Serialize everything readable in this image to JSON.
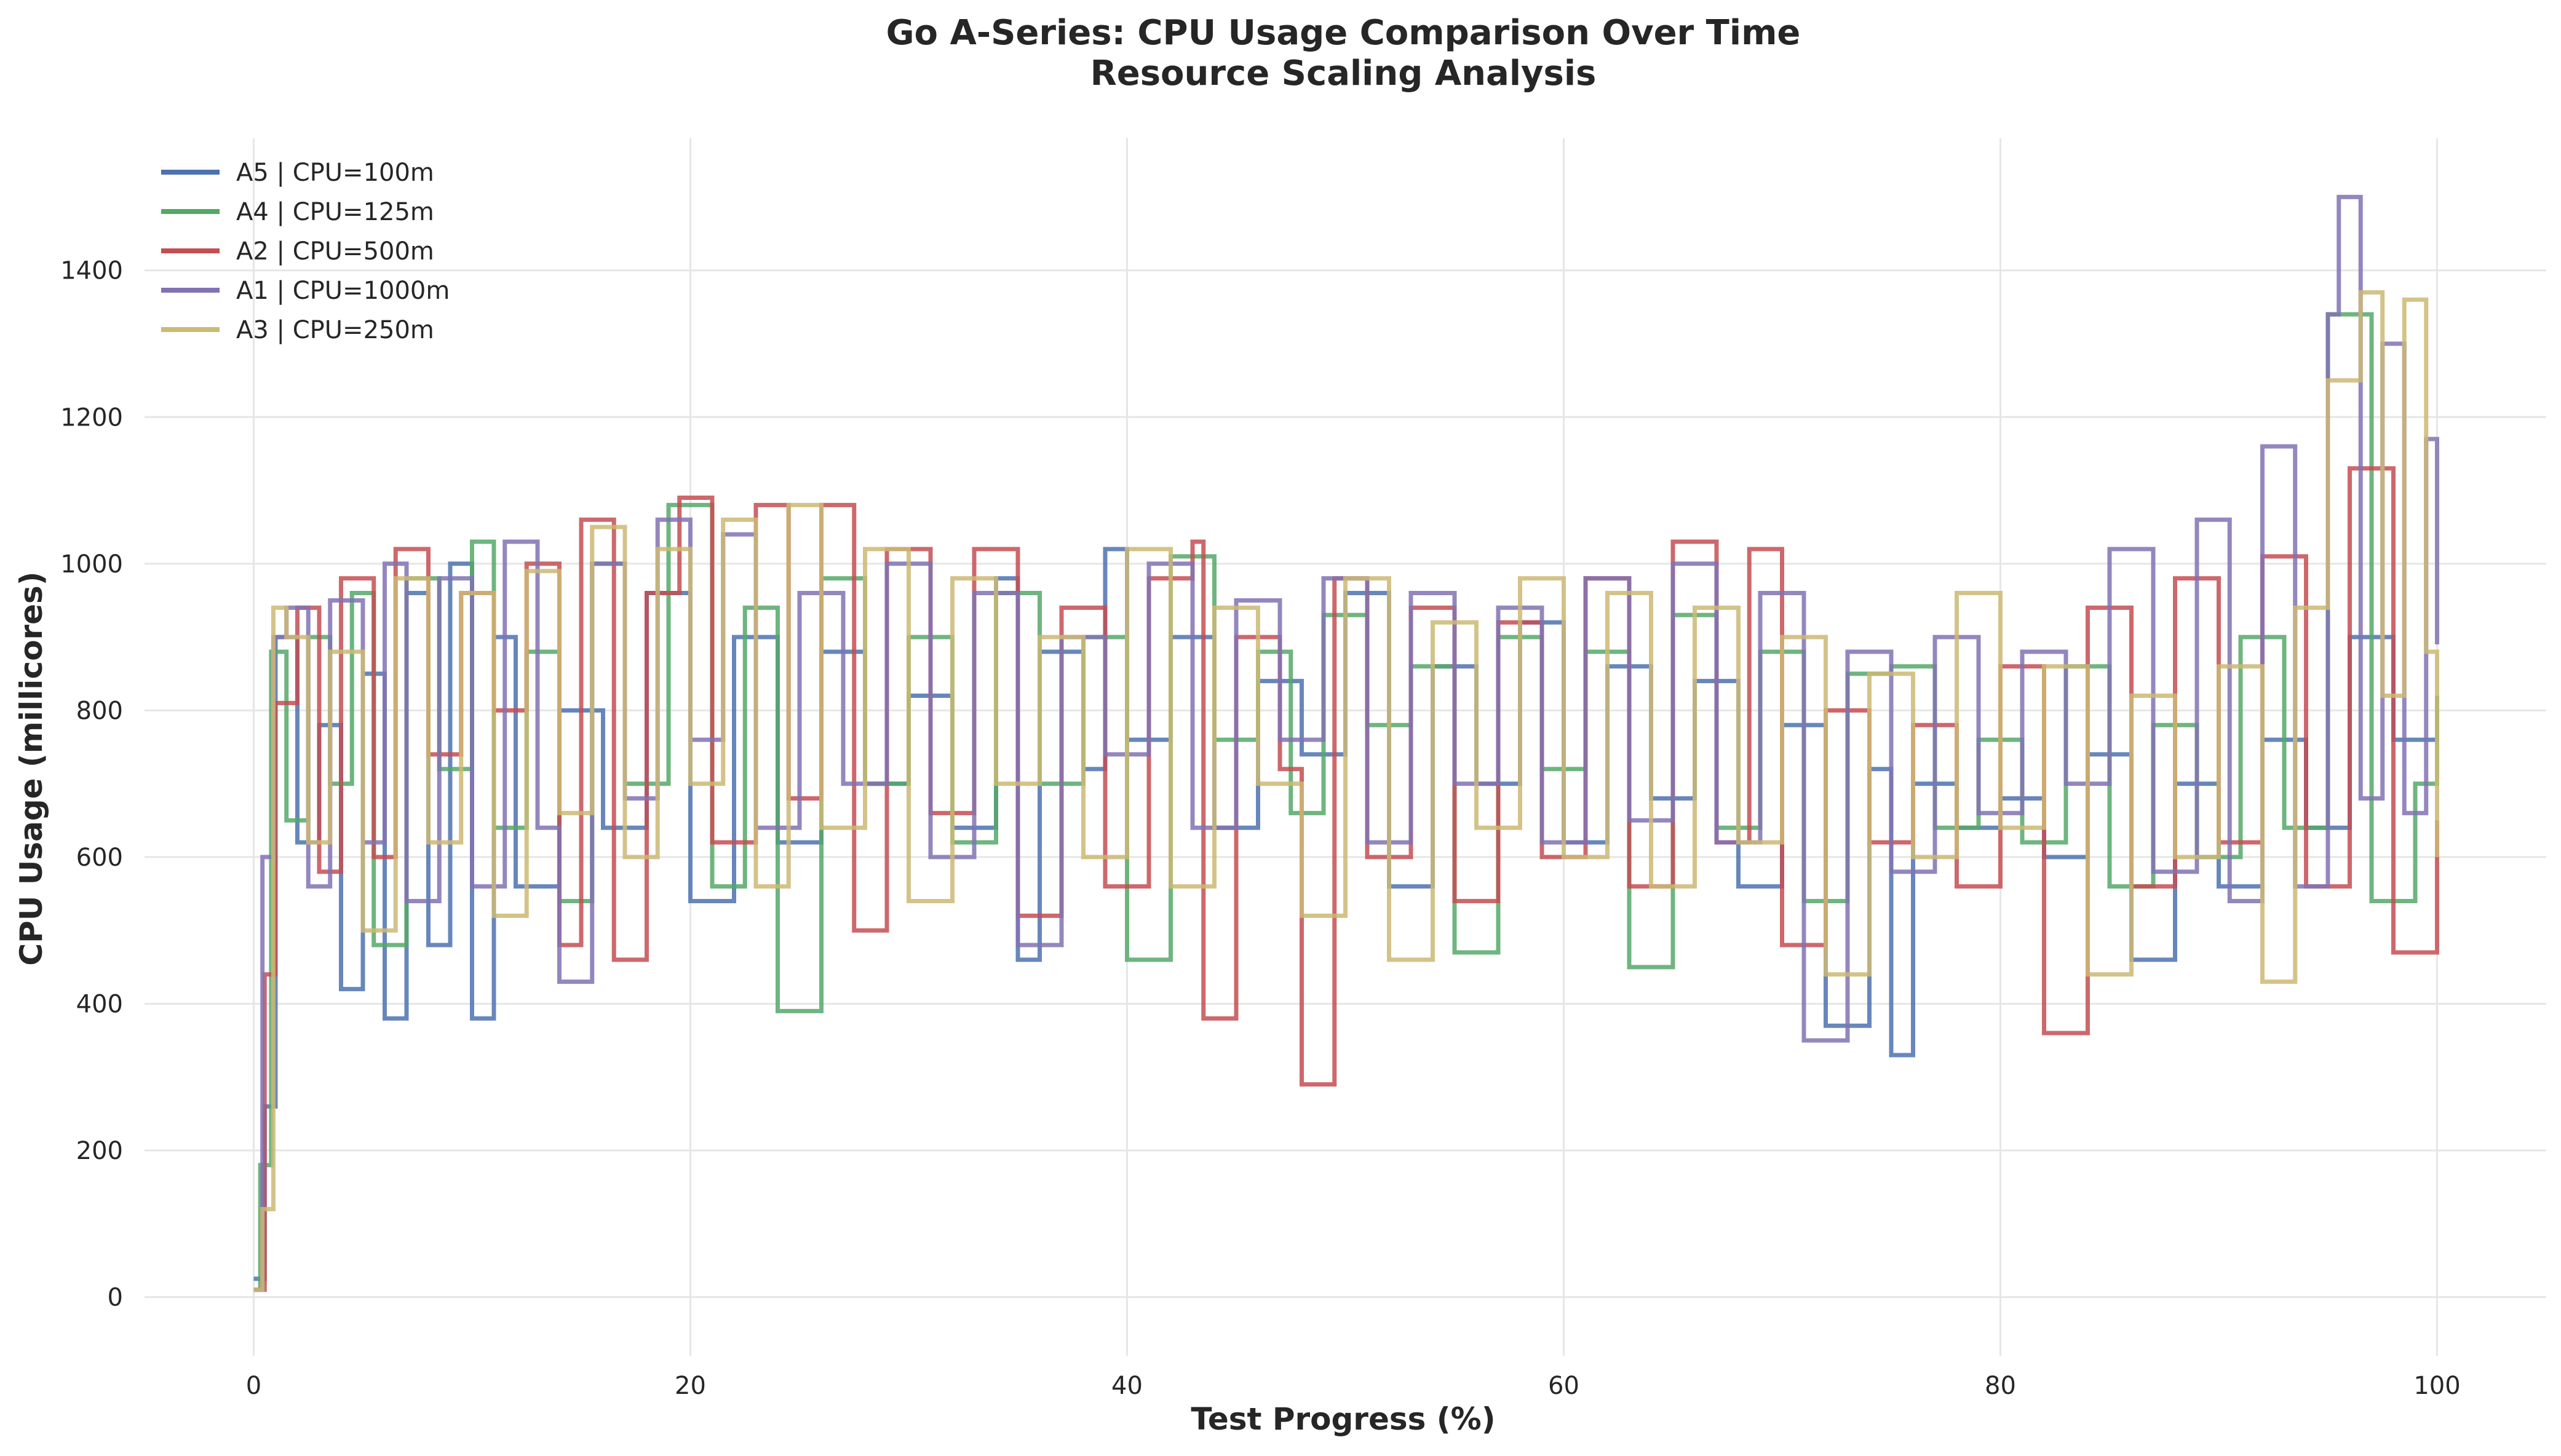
{
  "chart_data": {
    "type": "line",
    "step": true,
    "title": "Go A-Series: CPU Usage Comparison Over Time",
    "subtitle": "Resource Scaling Analysis",
    "xlabel": "Test Progress (%)",
    "ylabel": "CPU Usage (millicores)",
    "xlim": [
      -5,
      105
    ],
    "ylim": [
      -80,
      1580
    ],
    "xticks": [
      0,
      20,
      40,
      60,
      80,
      100
    ],
    "yticks": [
      0,
      200,
      400,
      600,
      800,
      1000,
      1200,
      1400
    ],
    "grid": true,
    "legend_position": "upper-left",
    "series": [
      {
        "name": "A5 | CPU=100m",
        "color": "#4c72b0",
        "x": [
          0,
          0.5,
          1,
          2,
          3,
          4,
          5,
          6,
          7,
          8,
          9,
          10,
          11,
          12,
          14,
          16,
          18,
          20,
          22,
          24,
          26,
          28,
          30,
          32,
          34,
          35,
          36,
          38,
          39,
          40,
          42,
          44,
          46,
          48,
          50,
          52,
          54,
          56,
          58,
          60,
          62,
          64,
          66,
          68,
          70,
          72,
          74,
          75,
          76,
          78,
          80,
          82,
          84,
          86,
          88,
          90,
          92,
          94,
          96,
          98,
          100
        ],
        "y": [
          25,
          260,
          900,
          620,
          780,
          420,
          850,
          380,
          960,
          480,
          1000,
          380,
          900,
          560,
          800,
          640,
          960,
          540,
          900,
          620,
          880,
          700,
          820,
          640,
          980,
          460,
          880,
          720,
          1020,
          760,
          900,
          640,
          840,
          740,
          960,
          560,
          860,
          700,
          920,
          620,
          860,
          680,
          840,
          560,
          780,
          370,
          720,
          330,
          700,
          640,
          680,
          600,
          740,
          460,
          700,
          560,
          760,
          640,
          900,
          760,
          820
        ]
      },
      {
        "name": "A4 | CPU=125m",
        "color": "#55a868",
        "x": [
          0,
          0.3,
          0.8,
          1.5,
          2.5,
          3.5,
          4.5,
          5.5,
          7,
          8.5,
          10,
          11,
          12.5,
          14,
          15.5,
          17,
          19,
          21,
          22.5,
          24,
          26,
          28,
          30,
          32,
          34,
          36,
          38,
          40,
          42,
          44,
          46,
          47.5,
          49,
          51,
          53,
          55,
          57,
          59,
          61,
          63,
          65,
          67,
          69,
          71,
          73,
          75,
          77,
          79,
          81,
          83,
          85,
          87,
          89,
          91,
          93,
          95,
          97,
          99,
          100
        ],
        "y": [
          10,
          180,
          880,
          650,
          900,
          700,
          960,
          480,
          980,
          720,
          1030,
          640,
          880,
          540,
          1000,
          700,
          1080,
          560,
          940,
          390,
          980,
          700,
          900,
          620,
          960,
          700,
          900,
          460,
          1010,
          760,
          880,
          660,
          930,
          780,
          860,
          470,
          900,
          720,
          880,
          450,
          930,
          640,
          880,
          540,
          850,
          860,
          640,
          760,
          620,
          860,
          560,
          780,
          600,
          900,
          640,
          1340,
          540,
          700,
          820
        ]
      },
      {
        "name": "A2 | CPU=500m",
        "color": "#c44e52",
        "x": [
          0,
          0.5,
          1,
          2,
          3,
          4,
          5.5,
          6.5,
          8,
          9.5,
          11,
          12.5,
          14,
          15,
          16.5,
          18,
          19.5,
          21,
          23,
          24.5,
          26,
          27.5,
          29,
          31,
          33,
          35,
          37,
          39,
          41,
          43,
          43.5,
          45,
          47,
          48,
          49.5,
          51,
          53,
          55,
          57,
          59,
          61,
          63,
          65,
          67,
          68.5,
          70,
          72,
          74,
          76,
          78,
          80,
          82,
          84,
          86,
          88,
          90,
          92,
          94,
          96,
          98,
          100
        ],
        "y": [
          10,
          440,
          810,
          940,
          580,
          980,
          600,
          1020,
          740,
          960,
          800,
          1000,
          480,
          1060,
          460,
          960,
          1090,
          620,
          1080,
          680,
          1080,
          500,
          1020,
          660,
          1020,
          520,
          940,
          560,
          980,
          1030,
          380,
          900,
          720,
          290,
          980,
          600,
          940,
          540,
          920,
          600,
          980,
          560,
          1030,
          620,
          1020,
          480,
          800,
          620,
          780,
          560,
          860,
          360,
          940,
          560,
          980,
          620,
          1010,
          560,
          1130,
          470,
          650
        ]
      },
      {
        "name": "A1 | CPU=1000m",
        "color": "#8172b3",
        "x": [
          0,
          0.4,
          0.9,
          1.5,
          2.5,
          3.5,
          5,
          6,
          7,
          8.5,
          10,
          11.5,
          13,
          14,
          15.5,
          17,
          18.5,
          20,
          21.5,
          23,
          25,
          27,
          29,
          31,
          33,
          35,
          37,
          39,
          41,
          43,
          45,
          47,
          49,
          51,
          53,
          55,
          57,
          59,
          61,
          63,
          65,
          67,
          69,
          71,
          73,
          75,
          77,
          79,
          81,
          83,
          85,
          87,
          89,
          90.5,
          92,
          93.5,
          95,
          95.5,
          96.5,
          97.5,
          98.5,
          99.5,
          100
        ],
        "y": [
          10,
          600,
          900,
          940,
          560,
          950,
          620,
          1000,
          540,
          980,
          560,
          1030,
          640,
          430,
          1000,
          680,
          1060,
          760,
          1040,
          640,
          960,
          700,
          1000,
          600,
          960,
          480,
          900,
          740,
          1000,
          640,
          950,
          760,
          980,
          620,
          960,
          700,
          940,
          620,
          980,
          650,
          1000,
          620,
          960,
          350,
          880,
          580,
          900,
          660,
          880,
          700,
          1020,
          580,
          1060,
          540,
          1160,
          560,
          1340,
          1500,
          680,
          1300,
          660,
          1170,
          890
        ]
      },
      {
        "name": "A3 | CPU=250m",
        "color": "#ccb974",
        "x": [
          0,
          0.4,
          0.9,
          1.5,
          2.5,
          3.5,
          5,
          6.5,
          8,
          9.5,
          11,
          12.5,
          14,
          15.5,
          17,
          18.5,
          20,
          21.5,
          23,
          24.5,
          26,
          28,
          30,
          32,
          34,
          36,
          38,
          40,
          42,
          44,
          46,
          48,
          50,
          52,
          54,
          56,
          58,
          60,
          62,
          64,
          66,
          68,
          70,
          72,
          74,
          76,
          78,
          80,
          82,
          84,
          86,
          88,
          90,
          92,
          93.5,
          95,
          96.5,
          97.5,
          98.5,
          99.5,
          100
        ],
        "y": [
          10,
          120,
          940,
          900,
          620,
          880,
          500,
          980,
          620,
          960,
          520,
          990,
          660,
          1050,
          600,
          1020,
          700,
          1060,
          560,
          1080,
          640,
          1020,
          540,
          980,
          700,
          900,
          600,
          1020,
          560,
          940,
          700,
          520,
          980,
          460,
          920,
          640,
          980,
          600,
          960,
          560,
          940,
          620,
          900,
          440,
          850,
          600,
          960,
          640,
          860,
          440,
          820,
          600,
          860,
          430,
          940,
          1250,
          1370,
          820,
          1360,
          880,
          600
        ]
      }
    ]
  }
}
